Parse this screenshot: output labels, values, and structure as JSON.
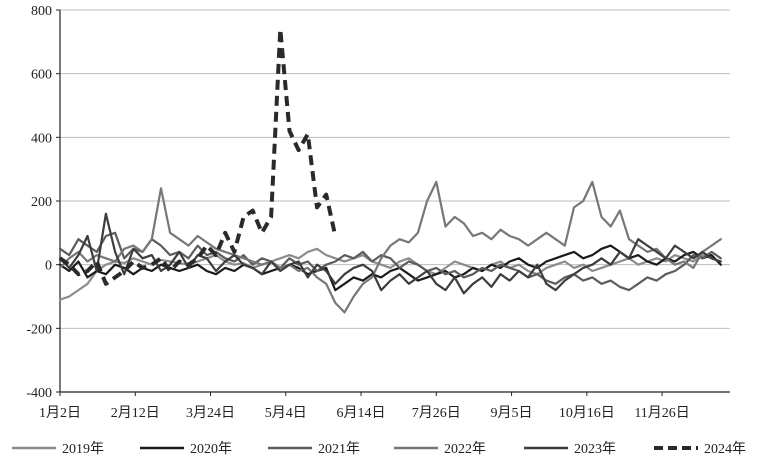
{
  "chart_data": {
    "type": "line",
    "title": "",
    "xlabel": "",
    "ylabel": "",
    "ylim": [
      -400,
      800
    ],
    "yticks": [
      -400,
      -200,
      0,
      200,
      400,
      600,
      800
    ],
    "x_tick_labels": [
      "1月2日",
      "2月12日",
      "3月24日",
      "5月4日",
      "6月14日",
      "7月26日",
      "9月5日",
      "10月16日",
      "11月26日"
    ],
    "grid": "horizontal",
    "legend_position": "bottom",
    "series": [
      {
        "name": "2019年",
        "color": "#8c8c8c",
        "dash": "solid",
        "x": [
          0,
          5,
          10,
          15,
          20,
          25,
          30,
          35,
          40,
          45,
          50,
          55,
          60,
          65,
          70,
          75,
          80,
          85,
          90,
          95,
          100,
          105,
          110,
          115,
          120,
          125,
          130,
          135,
          140,
          145,
          150,
          155,
          160,
          165,
          170,
          175,
          180,
          185,
          190,
          195,
          200,
          205,
          210,
          215,
          220,
          225,
          230,
          235,
          240,
          245,
          250,
          255,
          260,
          265,
          270,
          275,
          280,
          285,
          290,
          295,
          300,
          305,
          310,
          315,
          320,
          325,
          330,
          335,
          340,
          345,
          350,
          355,
          360
        ],
        "values": [
          -110,
          -100,
          -80,
          -60,
          -20,
          0,
          10,
          5,
          20,
          10,
          0,
          15,
          10,
          5,
          0,
          10,
          20,
          30,
          10,
          0,
          5,
          -10,
          0,
          10,
          20,
          30,
          20,
          40,
          50,
          30,
          20,
          10,
          20,
          30,
          10,
          0,
          -10,
          10,
          20,
          0,
          -20,
          -30,
          -10,
          10,
          0,
          -10,
          -20,
          0,
          10,
          -10,
          0,
          -20,
          -30,
          -10,
          0,
          10,
          -10,
          0,
          -20,
          -10,
          0,
          10,
          20,
          0,
          10,
          20,
          10,
          30,
          20,
          10,
          30,
          20,
          10
        ]
      },
      {
        "name": "2020年",
        "color": "#1a1a1a",
        "dash": "solid",
        "x": [
          0,
          5,
          10,
          15,
          20,
          25,
          30,
          35,
          40,
          45,
          50,
          55,
          60,
          65,
          70,
          75,
          80,
          85,
          90,
          95,
          100,
          105,
          110,
          115,
          120,
          125,
          130,
          135,
          140,
          145,
          150,
          155,
          160,
          165,
          170,
          175,
          180,
          185,
          190,
          195,
          200,
          205,
          210,
          215,
          220,
          225,
          230,
          235,
          240,
          245,
          250,
          255,
          260,
          265,
          270,
          275,
          280,
          285,
          290,
          295,
          300,
          305,
          310,
          315,
          320,
          325,
          330,
          335,
          340,
          345,
          350,
          355,
          360
        ],
        "values": [
          0,
          -20,
          10,
          -40,
          -20,
          -30,
          0,
          -10,
          -30,
          -10,
          -20,
          0,
          -10,
          -20,
          -10,
          0,
          -20,
          -30,
          -10,
          -20,
          0,
          -10,
          -30,
          -20,
          -10,
          0,
          -10,
          -30,
          -20,
          -10,
          -80,
          -60,
          -40,
          -50,
          -30,
          -40,
          -20,
          -10,
          -30,
          -50,
          -40,
          -30,
          -20,
          -40,
          -30,
          -10,
          -20,
          0,
          -10,
          10,
          20,
          0,
          -10,
          10,
          20,
          30,
          40,
          20,
          30,
          50,
          60,
          40,
          20,
          30,
          10,
          0,
          20,
          10,
          30,
          40,
          20,
          30,
          0
        ]
      },
      {
        "name": "2021年",
        "color": "#5c5c5c",
        "dash": "solid",
        "x": [
          0,
          5,
          10,
          15,
          20,
          25,
          30,
          35,
          40,
          45,
          50,
          55,
          60,
          65,
          70,
          75,
          80,
          85,
          90,
          95,
          100,
          105,
          110,
          115,
          120,
          125,
          130,
          135,
          140,
          145,
          150,
          155,
          160,
          165,
          170,
          175,
          180,
          185,
          190,
          195,
          200,
          205,
          210,
          215,
          220,
          225,
          230,
          235,
          240,
          245,
          250,
          255,
          260,
          265,
          270,
          275,
          280,
          285,
          290,
          295,
          300,
          305,
          310,
          315,
          320,
          325,
          330,
          335,
          340,
          345,
          350,
          355,
          360
        ],
        "values": [
          50,
          30,
          80,
          60,
          40,
          90,
          100,
          20,
          50,
          40,
          80,
          60,
          30,
          40,
          20,
          60,
          30,
          40,
          20,
          10,
          30,
          0,
          20,
          10,
          -10,
          20,
          0,
          10,
          -20,
          0,
          10,
          30,
          20,
          40,
          10,
          30,
          20,
          -10,
          10,
          0,
          -20,
          -10,
          -30,
          -20,
          -40,
          -30,
          -10,
          -20,
          0,
          -10,
          -20,
          -40,
          -30,
          -50,
          -60,
          -40,
          -30,
          -50,
          -40,
          -60,
          -50,
          -70,
          -80,
          -60,
          -40,
          -50,
          -30,
          -20,
          0,
          30,
          20,
          40,
          20
        ]
      },
      {
        "name": "2022年",
        "color": "#777777",
        "dash": "solid",
        "x": [
          0,
          5,
          10,
          15,
          20,
          25,
          30,
          35,
          40,
          45,
          50,
          55,
          60,
          65,
          70,
          75,
          80,
          85,
          90,
          95,
          100,
          105,
          110,
          115,
          120,
          125,
          130,
          135,
          140,
          145,
          150,
          155,
          160,
          165,
          170,
          175,
          180,
          185,
          190,
          195,
          200,
          205,
          210,
          215,
          220,
          225,
          230,
          235,
          240,
          245,
          250,
          255,
          260,
          265,
          270,
          275,
          280,
          285,
          290,
          295,
          300,
          305,
          310,
          315,
          320,
          325,
          330,
          335,
          340,
          345,
          350,
          355,
          360
        ],
        "values": [
          -10,
          20,
          40,
          10,
          30,
          20,
          10,
          50,
          60,
          40,
          80,
          240,
          100,
          80,
          60,
          90,
          70,
          50,
          40,
          30,
          20,
          10,
          0,
          10,
          -10,
          0,
          -20,
          -10,
          -40,
          -60,
          -120,
          -150,
          -100,
          -60,
          -40,
          20,
          60,
          80,
          70,
          100,
          200,
          260,
          120,
          150,
          130,
          90,
          100,
          80,
          110,
          90,
          80,
          60,
          80,
          100,
          80,
          60,
          180,
          200,
          260,
          150,
          120,
          170,
          80,
          60,
          40,
          50,
          20,
          0,
          10,
          -10,
          40,
          60,
          80
        ]
      },
      {
        "name": "2023年",
        "color": "#3d3d3d",
        "dash": "solid",
        "x": [
          0,
          5,
          10,
          15,
          20,
          25,
          30,
          35,
          40,
          45,
          50,
          55,
          60,
          65,
          70,
          75,
          80,
          85,
          90,
          95,
          100,
          105,
          110,
          115,
          120,
          125,
          130,
          135,
          140,
          145,
          150,
          155,
          160,
          165,
          170,
          175,
          180,
          185,
          190,
          195,
          200,
          205,
          210,
          215,
          220,
          225,
          230,
          235,
          240,
          245,
          250,
          255,
          260,
          265,
          270,
          275,
          280,
          285,
          290,
          295,
          300,
          305,
          310,
          315,
          320,
          325,
          330,
          335,
          340,
          345,
          350,
          355,
          360
        ],
        "values": [
          20,
          -10,
          30,
          90,
          -20,
          160,
          40,
          -30,
          50,
          20,
          30,
          -20,
          0,
          40,
          -10,
          30,
          20,
          -20,
          10,
          30,
          0,
          -10,
          -30,
          10,
          -20,
          0,
          10,
          -40,
          0,
          -20,
          -60,
          -30,
          -10,
          0,
          -20,
          -80,
          -50,
          -30,
          -60,
          -40,
          -20,
          -60,
          -80,
          -40,
          -90,
          -60,
          -40,
          -70,
          -30,
          -50,
          -20,
          -40,
          0,
          -60,
          -80,
          -50,
          -30,
          -10,
          0,
          20,
          0,
          40,
          20,
          80,
          60,
          40,
          20,
          60,
          40,
          20,
          40,
          20,
          10
        ]
      },
      {
        "name": "2024年",
        "color": "#2a2a2a",
        "dash": "dashed",
        "x": [
          0,
          5,
          10,
          15,
          20,
          25,
          30,
          35,
          40,
          45,
          50,
          55,
          60,
          65,
          70,
          75,
          80,
          85,
          90,
          95,
          100,
          105,
          110,
          115,
          120,
          125,
          130,
          135,
          140,
          145,
          150
        ],
        "values": [
          20,
          0,
          -30,
          -20,
          10,
          -60,
          -40,
          -20,
          10,
          -10,
          0,
          20,
          -20,
          10,
          0,
          20,
          60,
          30,
          100,
          40,
          150,
          170,
          100,
          150,
          740,
          420,
          360,
          410,
          180,
          220,
          90
        ]
      }
    ]
  }
}
